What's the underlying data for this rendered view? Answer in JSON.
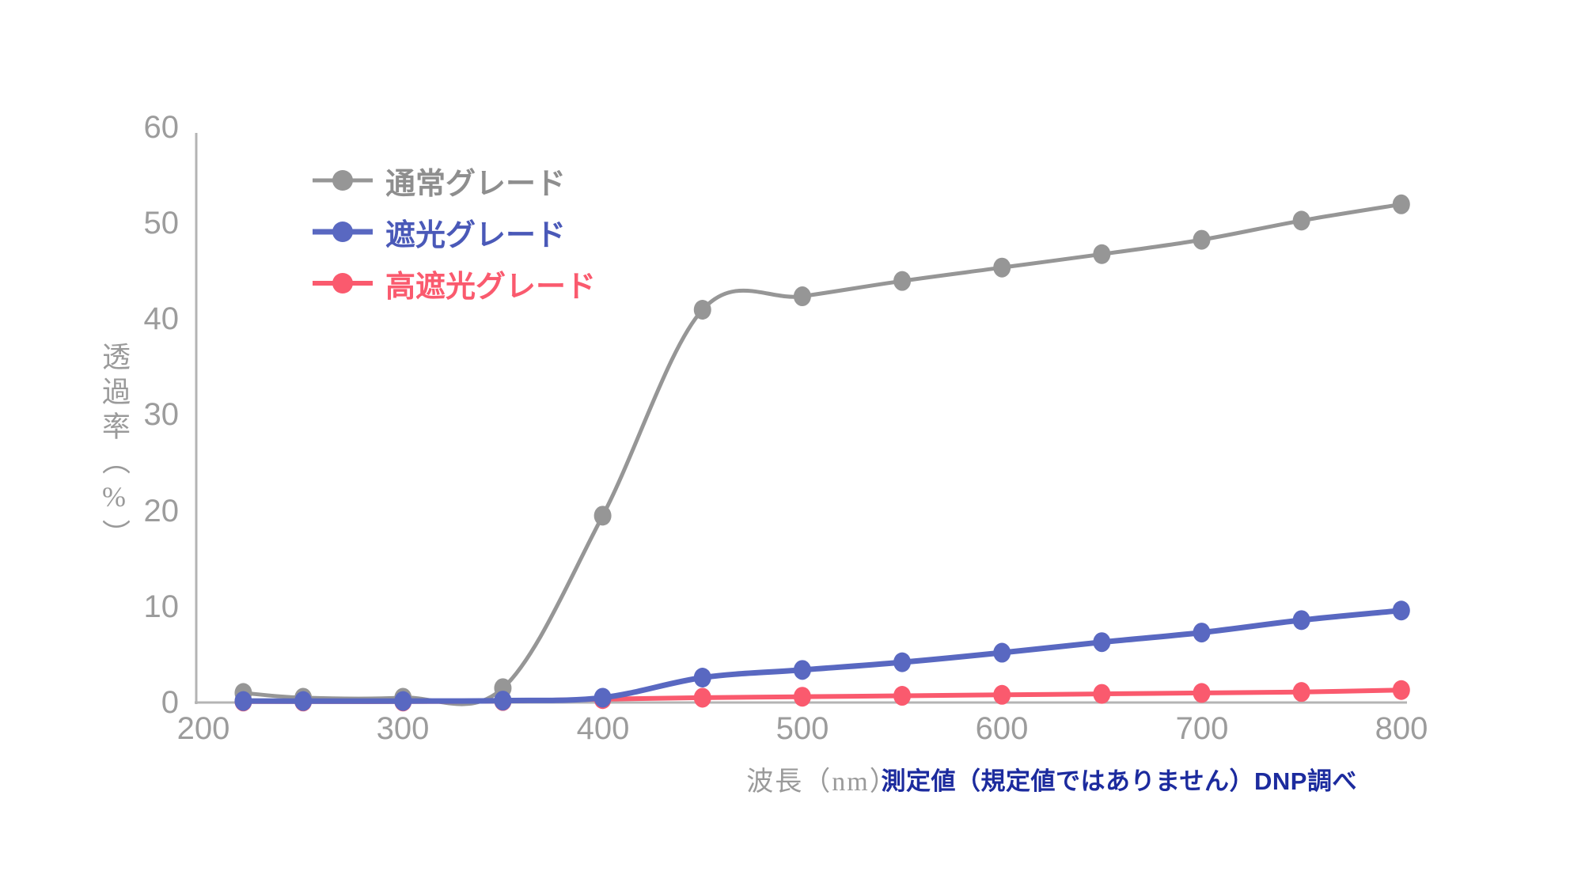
{
  "chart_data": {
    "type": "line",
    "title": "",
    "xlabel": "波長（nm）",
    "ylabel": "透過率（%）",
    "xlim": [
      200,
      800
    ],
    "ylim": [
      0,
      60
    ],
    "grid": false,
    "legend_position": "top-left-inside",
    "x_ticks": [
      "200",
      "300",
      "400",
      "500",
      "600",
      "700",
      "800"
    ],
    "y_ticks": [
      "60",
      "50",
      "40",
      "30",
      "20",
      "10",
      "0"
    ],
    "x": [
      220,
      250,
      300,
      350,
      400,
      450,
      500,
      550,
      600,
      650,
      700,
      750,
      800
    ],
    "series": [
      {
        "name": "通常グレード",
        "color": "#969696",
        "text_color": "#8e8e8e",
        "values": [
          1.0,
          0.5,
          0.5,
          1.5,
          19.5,
          41,
          42.4,
          44,
          45.4,
          46.8,
          48.3,
          50.3,
          52
        ]
      },
      {
        "name": "遮光グレード",
        "color": "#5968c1",
        "text_color": "#4a59b8",
        "values": [
          0.15,
          0.15,
          0.15,
          0.2,
          0.5,
          2.6,
          3.4,
          4.2,
          5.2,
          6.3,
          7.3,
          8.6,
          9.6
        ]
      },
      {
        "name": "高遮光グレード",
        "color": "#fa5a6e",
        "text_color": "#fa5a6e",
        "values": [
          0.1,
          0.1,
          0.1,
          0.15,
          0.35,
          0.5,
          0.6,
          0.7,
          0.8,
          0.9,
          1.0,
          1.1,
          1.3
        ]
      }
    ],
    "annotation": "測定値（規定値ではありません）DNP調べ",
    "annotation_color": "#1c2b9e",
    "axis_color": "#b4b4b4",
    "tick_color": "#9c9c9c"
  }
}
